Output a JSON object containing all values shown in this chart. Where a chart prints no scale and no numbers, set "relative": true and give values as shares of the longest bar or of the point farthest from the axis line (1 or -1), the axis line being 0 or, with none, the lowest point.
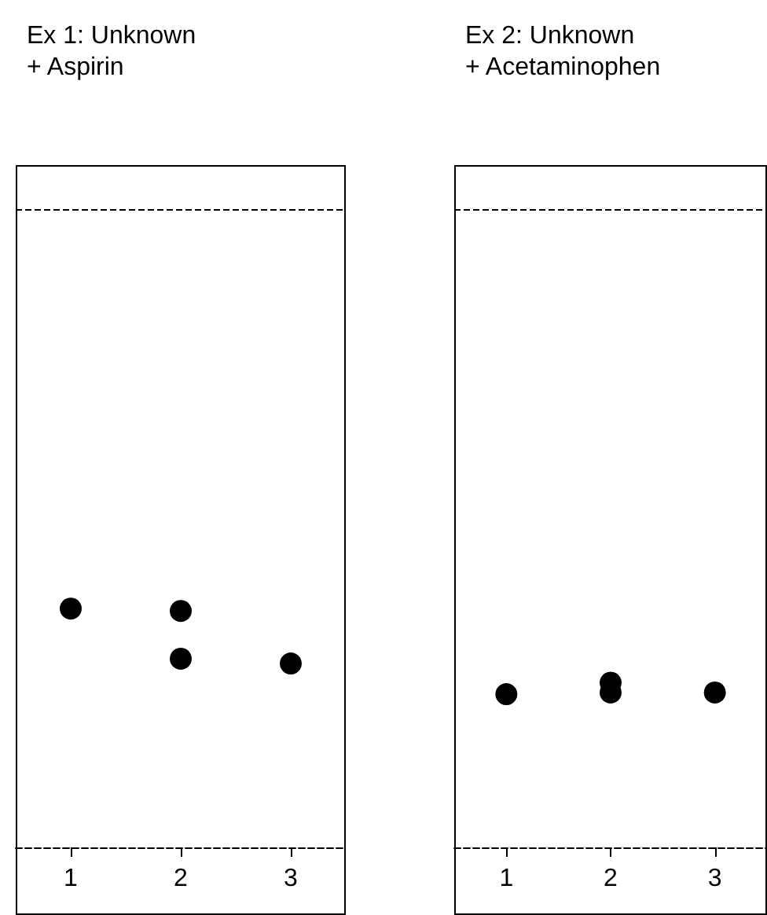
{
  "chart_data": [
    {
      "type": "scatter",
      "title": "Ex 1: Unknown\n+ Aspirin",
      "categories": [
        "1",
        "2",
        "3"
      ],
      "relative": true,
      "marker": "circle",
      "series": [
        {
          "color": "#000000",
          "x": [
            "1",
            "2",
            "2",
            "3"
          ],
          "values": [
            1,
            0.99,
            0.79,
            0.77
          ]
        }
      ],
      "ref_lines": [
        {
          "axis": "y",
          "value": 2.67,
          "line_style": "dashed"
        }
      ]
    },
    {
      "type": "scatter",
      "title": "Ex 2: Unknown\n+ Acetaminophen",
      "categories": [
        "1",
        "2",
        "3"
      ],
      "relative": true,
      "marker": "circle",
      "series": [
        {
          "color": "#000000",
          "x": [
            "1",
            "2",
            "2",
            "3"
          ],
          "values": [
            0.93,
            1,
            0.94,
            0.94
          ]
        }
      ],
      "ref_lines": [
        {
          "axis": "y",
          "value": 3.87,
          "line_style": "dashed"
        }
      ]
    }
  ]
}
